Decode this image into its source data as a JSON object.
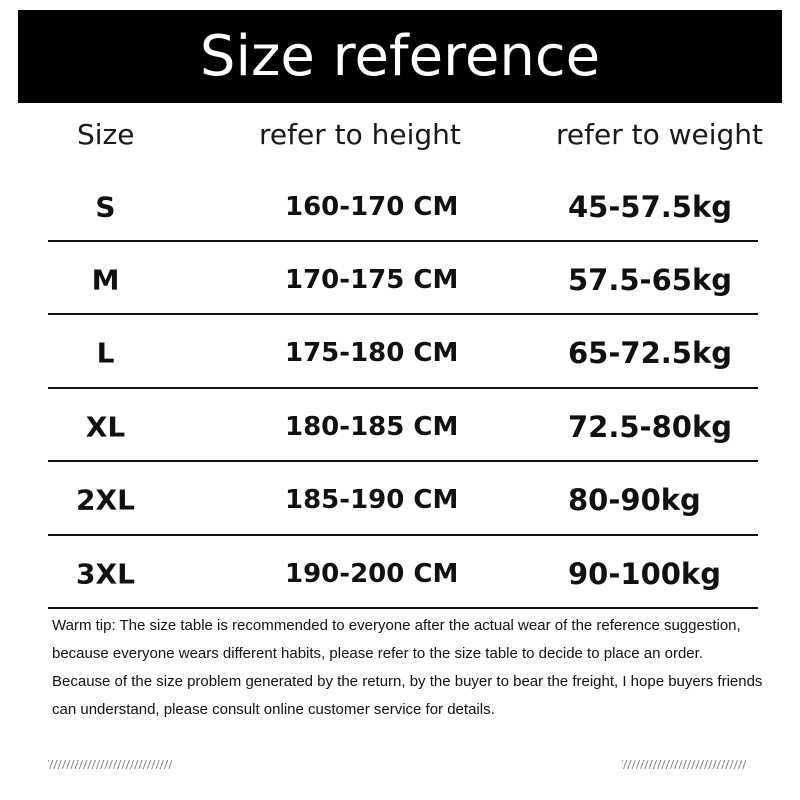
{
  "title": "Size reference",
  "columns": [
    "Size",
    "refer to height",
    "refer to weight"
  ],
  "rows": [
    {
      "size": "S",
      "height": "160-170 CM",
      "weight": "45-57.5kg"
    },
    {
      "size": "M",
      "height": "170-175 CM",
      "weight": "57.5-65kg"
    },
    {
      "size": "L",
      "height": "175-180 CM",
      "weight": "65-72.5kg"
    },
    {
      "size": "XL",
      "height": "180-185 CM",
      "weight": "72.5-80kg"
    },
    {
      "size": "2XL",
      "height": "185-190 CM",
      "weight": "80-90kg"
    },
    {
      "size": "3XL",
      "height": "190-200 CM",
      "weight": "90-100kg"
    }
  ],
  "tips": [
    "Warm tip: The size table is recommended to everyone after the actual wear of the reference suggestion, because everyone wears different habits, please refer to the size table to decide to place an order.",
    "Because of the size problem generated by the return, by the buyer to bear the freight, I hope buyers friends can understand, please consult online customer service for details."
  ]
}
